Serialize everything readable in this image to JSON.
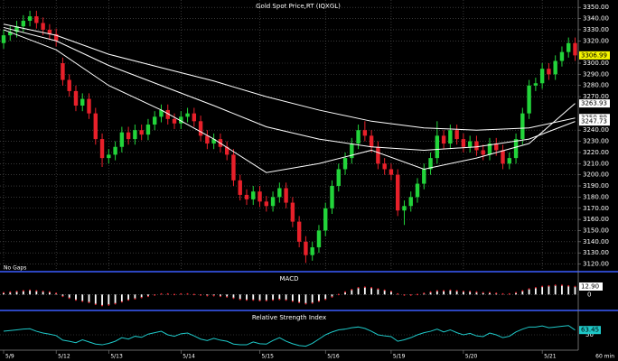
{
  "chart_data": {
    "type": "candlestick",
    "title": "Gold  Spot Price,RT  (IQXGL)",
    "annotation": "No Gaps",
    "interval": "60 min",
    "categories": [
      "5/9",
      null,
      null,
      null,
      null,
      null,
      null,
      null,
      "5/12",
      null,
      null,
      null,
      null,
      null,
      null,
      null,
      "5/13",
      null,
      null,
      null,
      null,
      null,
      null,
      null,
      null,
      null,
      null,
      "5/14",
      null,
      null,
      null,
      null,
      null,
      null,
      null,
      null,
      null,
      null,
      null,
      "5/15",
      null,
      null,
      null,
      null,
      null,
      null,
      null,
      null,
      null,
      "5/16",
      null,
      null,
      null,
      null,
      null,
      null,
      null,
      null,
      null,
      "5/19",
      null,
      null,
      null,
      null,
      null,
      null,
      null,
      null,
      null,
      null,
      "5/20",
      null,
      null,
      null,
      null,
      null,
      null,
      null,
      null,
      null,
      null,
      null,
      "5/21",
      null,
      null,
      null,
      null,
      null
    ],
    "open": [
      3318,
      3325,
      3328,
      3333,
      3338,
      3342,
      3336,
      3330,
      3326,
      3300,
      3285,
      3275,
      3262,
      3268,
      3255,
      3232,
      3215,
      3218,
      3225,
      3238,
      3232,
      3240,
      3236,
      3245,
      3252,
      3258,
      3250,
      3246,
      3252,
      3255,
      3248,
      3235,
      3228,
      3232,
      3225,
      3218,
      3195,
      3182,
      3178,
      3185,
      3176,
      3172,
      3180,
      3188,
      3175,
      3158,
      3140,
      3128,
      3135,
      3150,
      3170,
      3190,
      3205,
      3215,
      3228,
      3240,
      3235,
      3225,
      3210,
      3205,
      3200,
      3168,
      3172,
      3180,
      3192,
      3205,
      3215,
      3235,
      3228,
      3240,
      3232,
      3225,
      3230,
      3222,
      3218,
      3228,
      3222,
      3210,
      3215,
      3232,
      3255,
      3280,
      3282,
      3295,
      3290,
      3302,
      3310,
      3318
    ],
    "high": [
      3330,
      3333,
      3338,
      3343,
      3347,
      3347,
      3341,
      3335,
      3331,
      3305,
      3290,
      3280,
      3273,
      3273,
      3260,
      3237,
      3223,
      3230,
      3243,
      3243,
      3245,
      3245,
      3250,
      3257,
      3263,
      3263,
      3255,
      3257,
      3260,
      3260,
      3253,
      3240,
      3237,
      3237,
      3230,
      3223,
      3200,
      3187,
      3190,
      3190,
      3181,
      3185,
      3193,
      3193,
      3180,
      3163,
      3145,
      3140,
      3155,
      3175,
      3195,
      3210,
      3220,
      3233,
      3245,
      3248,
      3240,
      3230,
      3215,
      3210,
      3205,
      3177,
      3185,
      3197,
      3210,
      3220,
      3248,
      3240,
      3245,
      3245,
      3237,
      3235,
      3235,
      3227,
      3233,
      3233,
      3227,
      3220,
      3237,
      3260,
      3285,
      3287,
      3300,
      3300,
      3307,
      3315,
      3323,
      3323
    ],
    "low": [
      3313,
      3320,
      3323,
      3328,
      3333,
      3331,
      3325,
      3321,
      3315,
      3280,
      3270,
      3257,
      3257,
      3250,
      3227,
      3207,
      3210,
      3213,
      3220,
      3227,
      3227,
      3231,
      3231,
      3240,
      3247,
      3245,
      3241,
      3241,
      3247,
      3243,
      3230,
      3223,
      3223,
      3220,
      3213,
      3190,
      3177,
      3173,
      3173,
      3171,
      3167,
      3167,
      3175,
      3170,
      3153,
      3135,
      3121,
      3123,
      3130,
      3145,
      3165,
      3185,
      3200,
      3210,
      3223,
      3230,
      3220,
      3205,
      3200,
      3195,
      3163,
      3155,
      3167,
      3175,
      3187,
      3200,
      3210,
      3223,
      3223,
      3227,
      3220,
      3220,
      3217,
      3213,
      3213,
      3217,
      3205,
      3205,
      3210,
      3227,
      3250,
      3275,
      3277,
      3285,
      3285,
      3297,
      3305,
      3302
    ],
    "close": [
      3325,
      3328,
      3333,
      3338,
      3342,
      3336,
      3330,
      3326,
      3320,
      3285,
      3275,
      3262,
      3268,
      3255,
      3232,
      3215,
      3218,
      3225,
      3238,
      3232,
      3240,
      3236,
      3245,
      3252,
      3258,
      3250,
      3246,
      3252,
      3255,
      3248,
      3235,
      3228,
      3232,
      3225,
      3218,
      3195,
      3182,
      3178,
      3185,
      3176,
      3172,
      3180,
      3188,
      3175,
      3158,
      3140,
      3128,
      3135,
      3150,
      3170,
      3190,
      3205,
      3215,
      3228,
      3240,
      3235,
      3225,
      3210,
      3205,
      3200,
      3168,
      3172,
      3180,
      3192,
      3205,
      3215,
      3235,
      3228,
      3240,
      3232,
      3225,
      3230,
      3222,
      3218,
      3228,
      3222,
      3210,
      3215,
      3232,
      3255,
      3280,
      3282,
      3295,
      3290,
      3302,
      3310,
      3318,
      3306.99
    ],
    "up_color": "#22d43a",
    "down_color": "#e8202a",
    "moving_averages": [
      {
        "color": "#ffffff",
        "x": [
          0,
          8,
          16,
          24,
          32,
          40,
          48,
          56,
          64,
          72,
          80,
          87
        ],
        "values": [
          3335,
          3325,
          3308,
          3296,
          3284,
          3270,
          3258,
          3248,
          3242,
          3240,
          3242,
          3250.89
        ]
      },
      {
        "color": "#ffffff",
        "x": [
          0,
          8,
          16,
          24,
          32,
          40,
          48,
          56,
          64,
          72,
          80,
          87
        ],
        "values": [
          3332,
          3320,
          3298,
          3280,
          3262,
          3243,
          3232,
          3225,
          3222,
          3225,
          3232,
          3247.73
        ]
      },
      {
        "color": "#ffffff",
        "x": [
          0,
          8,
          16,
          24,
          32,
          40,
          48,
          56,
          64,
          72,
          80,
          87
        ],
        "values": [
          3330,
          3312,
          3280,
          3258,
          3232,
          3202,
          3210,
          3222,
          3205,
          3215,
          3228,
          3263.93
        ]
      }
    ],
    "ylim": [
      3114,
      3355
    ],
    "yticks": [
      {
        "value": 3120,
        "label": "3120.00"
      },
      {
        "value": 3130,
        "label": "3130.00"
      },
      {
        "value": 3140,
        "label": "3140.00"
      },
      {
        "value": 3150,
        "label": "3150.00"
      },
      {
        "value": 3160,
        "label": "3160.00"
      },
      {
        "value": 3170,
        "label": "3170.00"
      },
      {
        "value": 3180,
        "label": "3180.00"
      },
      {
        "value": 3190,
        "label": "3190.00"
      },
      {
        "value": 3200,
        "label": "3200.00"
      },
      {
        "value": 3210,
        "label": "3210.00"
      },
      {
        "value": 3220,
        "label": "3220.00"
      },
      {
        "value": 3230,
        "label": "3230.00"
      },
      {
        "value": 3240,
        "label": "3240.00"
      },
      {
        "value": 3270,
        "label": "3270.00"
      },
      {
        "value": 3280,
        "label": "3280.00"
      },
      {
        "value": 3290,
        "label": "3290.00"
      },
      {
        "value": 3300,
        "label": "3300.00"
      },
      {
        "value": 3320,
        "label": "3320.00"
      },
      {
        "value": 3330,
        "label": "3330.00"
      },
      {
        "value": 3340,
        "label": "3340.00"
      },
      {
        "value": 3350,
        "label": "3350.00"
      }
    ],
    "grid": true,
    "macd": {
      "title": "MACD",
      "color": "#ffffff",
      "ylim": [
        -20,
        18
      ],
      "yticks": [
        0
      ],
      "values": [
        3,
        4,
        5,
        6,
        7,
        6,
        5,
        4,
        2,
        -3,
        -6,
        -9,
        -11,
        -13,
        -16,
        -18,
        -17,
        -15,
        -12,
        -9,
        -7,
        -5,
        -3,
        -1,
        1,
        1,
        0,
        1,
        1,
        0,
        -1,
        -2,
        -2,
        -3,
        -4,
        -6,
        -8,
        -9,
        -9,
        -10,
        -10,
        -9,
        -8,
        -9,
        -11,
        -13,
        -15,
        -14,
        -11,
        -8,
        -4,
        0,
        4,
        8,
        11,
        12,
        11,
        9,
        7,
        5,
        1,
        -1,
        -1,
        0,
        2,
        4,
        6,
        6,
        7,
        6,
        5,
        5,
        4,
        3,
        3,
        2,
        1,
        1,
        3,
        6,
        9,
        11,
        13,
        14,
        15,
        15,
        14,
        12.9
      ],
      "value_labels": [
        null,
        null,
        null,
        null,
        null,
        null,
        null,
        null,
        null,
        null,
        null,
        null,
        null,
        null,
        null,
        null,
        null,
        null,
        null,
        null,
        null,
        null,
        null,
        null,
        null,
        null,
        null,
        null,
        null,
        null,
        null,
        null,
        null,
        null,
        null,
        null,
        null,
        null,
        null,
        null,
        null,
        null,
        null,
        null,
        null,
        null,
        null,
        null,
        null,
        null,
        null,
        null,
        null,
        null,
        null,
        null,
        null,
        null,
        null,
        null,
        null,
        null,
        null,
        null,
        null,
        null,
        null,
        null,
        null,
        null,
        null,
        null,
        null,
        null,
        null,
        null,
        null,
        null,
        null,
        null,
        null,
        null,
        null,
        null,
        null,
        null,
        null,
        "12.90"
      ]
    },
    "rsi": {
      "title": "Relative Strength Index",
      "color": "#1ec8c8",
      "ylim": [
        12,
        88
      ],
      "yticks": [
        50
      ],
      "values": [
        60,
        62,
        64,
        66,
        67,
        60,
        55,
        52,
        48,
        35,
        32,
        28,
        36,
        30,
        24,
        22,
        26,
        32,
        42,
        38,
        46,
        43,
        52,
        56,
        60,
        50,
        46,
        53,
        55,
        47,
        38,
        34,
        40,
        35,
        32,
        24,
        22,
        22,
        30,
        25,
        24,
        34,
        42,
        32,
        25,
        20,
        18,
        26,
        38,
        50,
        58,
        64,
        66,
        70,
        72,
        68,
        60,
        50,
        47,
        45,
        32,
        36,
        42,
        50,
        56,
        60,
        66,
        58,
        64,
        56,
        50,
        54,
        47,
        45,
        55,
        50,
        42,
        46,
        58,
        66,
        72,
        72,
        75,
        70,
        72,
        74,
        76,
        63.45
      ]
    }
  }
}
